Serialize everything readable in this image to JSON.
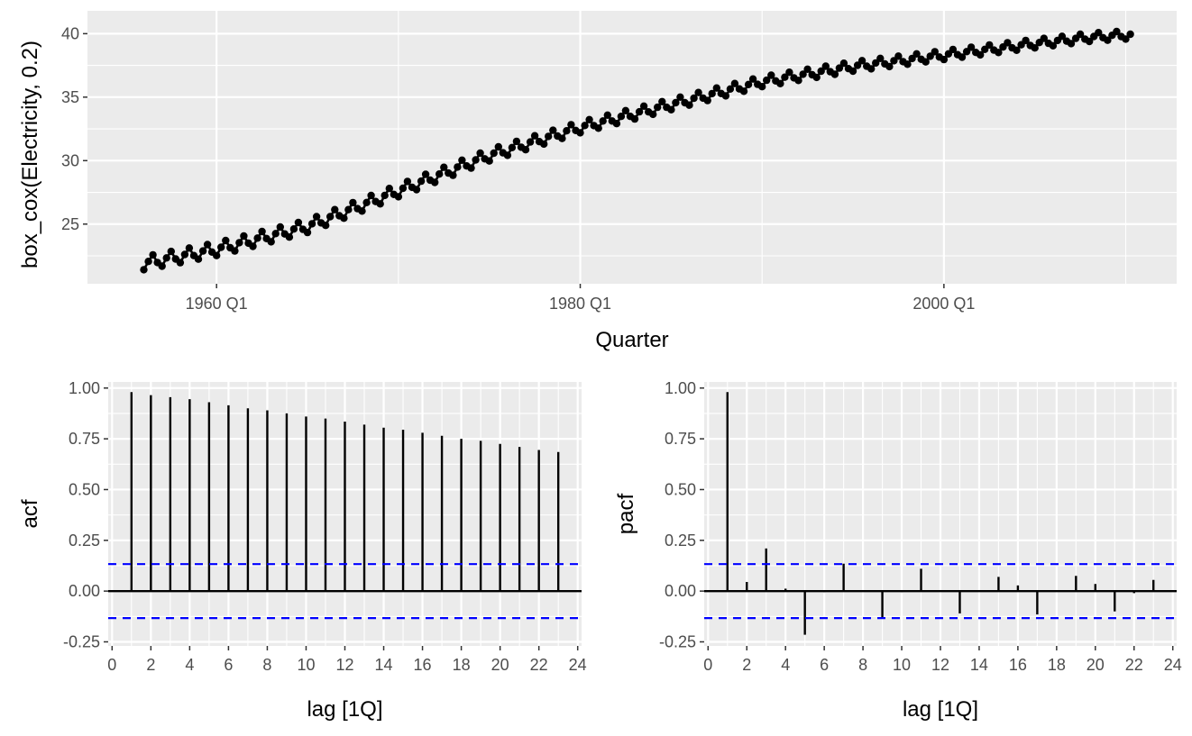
{
  "chart_data": [
    {
      "type": "scatter",
      "panel": "series",
      "xlabel": "Quarter",
      "ylabel": "box_cox(Electricity, 0.2)",
      "x_ticks": [
        {
          "value": 1960.0,
          "label": "1960 Q1"
        },
        {
          "value": 1980.0,
          "label": "1980 Q1"
        },
        {
          "value": 2000.0,
          "label": "2000 Q1"
        }
      ],
      "y_ticks": [
        25,
        30,
        35,
        40
      ],
      "xlim": [
        1952.9,
        2012.8
      ],
      "ylim": [
        20.3,
        41.8
      ],
      "x_start": 1956.0,
      "n_obs": 218,
      "frequency": 4,
      "trend_knots": [
        [
          1956.0,
          21.9
        ],
        [
          1960.0,
          23.0
        ],
        [
          1965.0,
          24.8
        ],
        [
          1970.0,
          27.6
        ],
        [
          1975.0,
          30.4
        ],
        [
          1980.0,
          32.6
        ],
        [
          1985.0,
          34.4
        ],
        [
          1990.0,
          36.2
        ],
        [
          1995.0,
          37.4
        ],
        [
          2000.0,
          38.3
        ],
        [
          2005.0,
          39.2
        ],
        [
          2008.0,
          39.7
        ],
        [
          2010.25,
          39.9
        ]
      ],
      "seasonal_amplitude": [
        0.9,
        0.55
      ],
      "seasonal_pattern": [
        -0.55,
        0.1,
        0.6,
        -0.15
      ],
      "grid": true,
      "legend": "none",
      "color": "#000000"
    },
    {
      "type": "bar",
      "panel": "acf",
      "xlabel": "lag [1Q]",
      "ylabel": "acf",
      "lags": [
        1,
        2,
        3,
        4,
        5,
        6,
        7,
        8,
        9,
        10,
        11,
        12,
        13,
        14,
        15,
        16,
        17,
        18,
        19,
        20,
        21,
        22,
        23
      ],
      "values": [
        0.98,
        0.965,
        0.955,
        0.945,
        0.93,
        0.915,
        0.9,
        0.89,
        0.875,
        0.86,
        0.85,
        0.835,
        0.82,
        0.805,
        0.795,
        0.78,
        0.765,
        0.75,
        0.74,
        0.725,
        0.71,
        0.695,
        0.685
      ],
      "ci": 0.133,
      "xlim": [
        -0.2,
        24.2
      ],
      "ylim": [
        -0.27,
        1.03
      ],
      "x_ticks": [
        0,
        2,
        4,
        6,
        8,
        10,
        12,
        14,
        16,
        18,
        20,
        22,
        24
      ],
      "y_ticks": [
        {
          "value": -0.25,
          "label": "-0.25"
        },
        {
          "value": 0.0,
          "label": "0.00"
        },
        {
          "value": 0.25,
          "label": "0.25"
        },
        {
          "value": 0.5,
          "label": "0.50"
        },
        {
          "value": 0.75,
          "label": "0.75"
        },
        {
          "value": 1.0,
          "label": "1.00"
        }
      ],
      "ci_color": "#0000ff",
      "grid": true
    },
    {
      "type": "bar",
      "panel": "pacf",
      "xlabel": "lag [1Q]",
      "ylabel": "pacf",
      "lags": [
        1,
        2,
        3,
        4,
        5,
        6,
        7,
        8,
        9,
        10,
        11,
        12,
        13,
        14,
        15,
        16,
        17,
        18,
        19,
        20,
        21,
        22,
        23
      ],
      "values": [
        0.98,
        0.045,
        0.21,
        0.012,
        -0.215,
        -0.005,
        0.135,
        0.0,
        -0.13,
        -0.005,
        0.11,
        0.0,
        -0.11,
        0.0,
        0.07,
        0.028,
        -0.115,
        0.0,
        0.075,
        0.035,
        -0.1,
        -0.01,
        0.055
      ],
      "ci": 0.133,
      "xlim": [
        -0.2,
        24.2
      ],
      "ylim": [
        -0.27,
        1.03
      ],
      "x_ticks": [
        0,
        2,
        4,
        6,
        8,
        10,
        12,
        14,
        16,
        18,
        20,
        22,
        24
      ],
      "y_ticks": [
        {
          "value": -0.25,
          "label": "-0.25"
        },
        {
          "value": 0.0,
          "label": "0.00"
        },
        {
          "value": 0.25,
          "label": "0.25"
        },
        {
          "value": 0.5,
          "label": "0.50"
        },
        {
          "value": 0.75,
          "label": "0.75"
        },
        {
          "value": 1.0,
          "label": "1.00"
        }
      ],
      "ci_color": "#0000ff",
      "grid": true
    }
  ]
}
